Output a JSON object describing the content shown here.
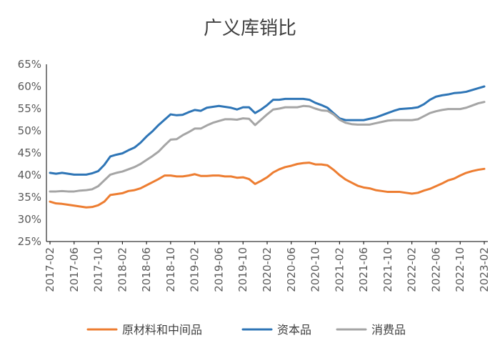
{
  "chart_data": {
    "type": "line",
    "title": "广义库销比",
    "xlabel": "",
    "ylabel": "",
    "ylim": [
      0.25,
      0.65
    ],
    "yticks": [
      "25%",
      "30%",
      "35%",
      "40%",
      "45%",
      "50%",
      "55%",
      "60%",
      "65%"
    ],
    "xtick_labels": [
      "2017-02",
      "2017-06",
      "2017-10",
      "2018-02",
      "2018-06",
      "2018-10",
      "2019-02",
      "2019-06",
      "2019-10",
      "2020-02",
      "2020-06",
      "2020-10",
      "2021-02",
      "2021-06",
      "2021-10",
      "2022-02",
      "2022-06",
      "2022-10",
      "2023-02"
    ],
    "x": [
      "2017-02",
      "2017-03",
      "2017-04",
      "2017-05",
      "2017-06",
      "2017-07",
      "2017-08",
      "2017-09",
      "2017-10",
      "2017-11",
      "2017-12",
      "2018-01",
      "2018-02",
      "2018-03",
      "2018-04",
      "2018-05",
      "2018-06",
      "2018-07",
      "2018-08",
      "2018-09",
      "2018-10",
      "2018-11",
      "2018-12",
      "2019-01",
      "2019-02",
      "2019-03",
      "2019-04",
      "2019-05",
      "2019-06",
      "2019-07",
      "2019-08",
      "2019-09",
      "2019-10",
      "2019-11",
      "2019-12",
      "2020-01",
      "2020-02",
      "2020-03",
      "2020-04",
      "2020-05",
      "2020-06",
      "2020-07",
      "2020-08",
      "2020-09",
      "2020-10",
      "2020-11",
      "2020-12",
      "2021-01",
      "2021-02",
      "2021-03",
      "2021-04",
      "2021-05",
      "2021-06",
      "2021-07",
      "2021-08",
      "2021-09",
      "2021-10",
      "2021-11",
      "2021-12",
      "2022-01",
      "2022-02",
      "2022-03",
      "2022-04",
      "2022-05",
      "2022-06",
      "2022-07",
      "2022-08",
      "2022-09",
      "2022-10",
      "2022-11",
      "2022-12",
      "2023-01",
      "2023-02"
    ],
    "legend_position": "bottom",
    "grid": false,
    "series": [
      {
        "name": "原材料和中间品",
        "color": "#ED7D31",
        "values": [
          0.34,
          0.336,
          0.335,
          0.333,
          0.331,
          0.329,
          0.327,
          0.328,
          0.332,
          0.34,
          0.355,
          0.357,
          0.359,
          0.364,
          0.366,
          0.37,
          0.377,
          0.384,
          0.391,
          0.399,
          0.399,
          0.397,
          0.397,
          0.399,
          0.402,
          0.398,
          0.398,
          0.399,
          0.399,
          0.397,
          0.397,
          0.394,
          0.395,
          0.391,
          0.38,
          0.387,
          0.395,
          0.406,
          0.413,
          0.418,
          0.421,
          0.425,
          0.427,
          0.428,
          0.424,
          0.424,
          0.422,
          0.412,
          0.4,
          0.39,
          0.383,
          0.376,
          0.372,
          0.37,
          0.366,
          0.364,
          0.362,
          0.362,
          0.362,
          0.36,
          0.358,
          0.36,
          0.365,
          0.369,
          0.375,
          0.381,
          0.388,
          0.392,
          0.399,
          0.405,
          0.409,
          0.412,
          0.414
        ]
      },
      {
        "name": "资本品",
        "color": "#2E75B6",
        "values": [
          0.405,
          0.403,
          0.405,
          0.403,
          0.401,
          0.401,
          0.401,
          0.404,
          0.409,
          0.423,
          0.442,
          0.446,
          0.449,
          0.456,
          0.462,
          0.473,
          0.487,
          0.499,
          0.513,
          0.525,
          0.537,
          0.535,
          0.536,
          0.542,
          0.547,
          0.545,
          0.552,
          0.554,
          0.556,
          0.554,
          0.552,
          0.548,
          0.553,
          0.553,
          0.54,
          0.548,
          0.558,
          0.57,
          0.57,
          0.572,
          0.572,
          0.572,
          0.572,
          0.57,
          0.563,
          0.558,
          0.552,
          0.54,
          0.528,
          0.524,
          0.524,
          0.524,
          0.524,
          0.527,
          0.53,
          0.535,
          0.54,
          0.545,
          0.549,
          0.55,
          0.551,
          0.553,
          0.56,
          0.57,
          0.577,
          0.58,
          0.582,
          0.585,
          0.586,
          0.588,
          0.592,
          0.596,
          0.6
        ]
      },
      {
        "name": "消费品",
        "color": "#A5A5A5",
        "values": [
          0.363,
          0.363,
          0.364,
          0.363,
          0.363,
          0.365,
          0.366,
          0.368,
          0.375,
          0.388,
          0.401,
          0.405,
          0.408,
          0.413,
          0.418,
          0.425,
          0.434,
          0.443,
          0.453,
          0.467,
          0.48,
          0.481,
          0.49,
          0.497,
          0.505,
          0.505,
          0.512,
          0.518,
          0.522,
          0.526,
          0.526,
          0.525,
          0.528,
          0.527,
          0.513,
          0.525,
          0.537,
          0.548,
          0.55,
          0.553,
          0.553,
          0.553,
          0.556,
          0.555,
          0.55,
          0.546,
          0.545,
          0.537,
          0.525,
          0.518,
          0.515,
          0.514,
          0.514,
          0.514,
          0.517,
          0.52,
          0.523,
          0.524,
          0.524,
          0.524,
          0.524,
          0.526,
          0.533,
          0.54,
          0.544,
          0.547,
          0.549,
          0.549,
          0.549,
          0.552,
          0.557,
          0.562,
          0.565
        ]
      }
    ]
  }
}
